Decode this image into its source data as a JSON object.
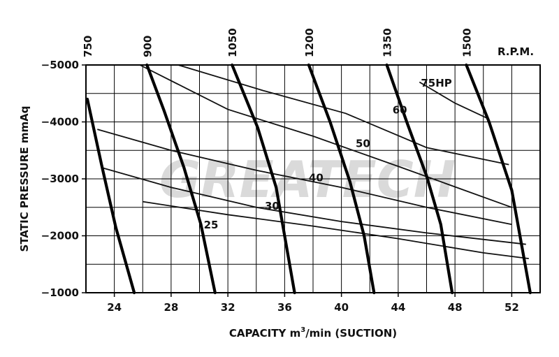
{
  "chart_data": {
    "type": "line",
    "title": "",
    "watermark": "GREATECH",
    "xlabel_prefix": "CAPACITY  m",
    "xlabel_sup": "3",
    "xlabel_suffix": "/min  (SUCTION)",
    "ylabel": "STATIC  PRESSURE  mmAq",
    "rpm_label": "R.P.M.",
    "xlim": [
      22,
      54
    ],
    "ylim": [
      -1000,
      -5000
    ],
    "grid": true,
    "x_ticks": [
      24,
      28,
      32,
      36,
      40,
      44,
      48,
      52
    ],
    "x_tick_labels": [
      "24",
      "28",
      "32",
      "36",
      "40",
      "44",
      "48",
      "52"
    ],
    "y_ticks": [
      -1000,
      -2000,
      -3000,
      -4000,
      -5000
    ],
    "y_tick_labels": [
      "−1000",
      "−2000",
      "−3000",
      "−4000",
      "−5000"
    ],
    "rpm_series": [
      {
        "name": "750",
        "points": [
          [
            22.1,
            -4400
          ],
          [
            23.1,
            -3250
          ],
          [
            24.1,
            -2150
          ],
          [
            25.4,
            -1000
          ]
        ]
      },
      {
        "name": "900",
        "points": [
          [
            26.3,
            -5000
          ],
          [
            27.5,
            -4200
          ],
          [
            28.9,
            -3200
          ],
          [
            30.1,
            -2200
          ],
          [
            31.1,
            -1000
          ]
        ]
      },
      {
        "name": "1050",
        "points": [
          [
            32.3,
            -5000
          ],
          [
            34.1,
            -3900
          ],
          [
            35.4,
            -2850
          ],
          [
            36.7,
            -1000
          ]
        ]
      },
      {
        "name": "1200",
        "points": [
          [
            37.7,
            -5000
          ],
          [
            39.2,
            -4000
          ],
          [
            40.6,
            -2950
          ],
          [
            41.6,
            -2000
          ],
          [
            42.3,
            -1000
          ]
        ]
      },
      {
        "name": "1350",
        "points": [
          [
            43.2,
            -5000
          ],
          [
            44.6,
            -4000
          ],
          [
            46.0,
            -3050
          ],
          [
            47.0,
            -2200
          ],
          [
            47.8,
            -1000
          ]
        ]
      },
      {
        "name": "1500",
        "points": [
          [
            48.8,
            -5000
          ],
          [
            50.4,
            -4000
          ],
          [
            52.0,
            -2800
          ],
          [
            53.3,
            -1000
          ]
        ]
      }
    ],
    "hp_series": [
      {
        "name": "75HP",
        "label_at": [
          45.6,
          -4620
        ],
        "points": [
          [
            45.5,
            -4700
          ],
          [
            48.0,
            -4330
          ],
          [
            50.4,
            -4050
          ]
        ]
      },
      {
        "name": "60",
        "label_at": [
          43.6,
          -4150
        ],
        "points": [
          [
            28.5,
            -5000
          ],
          [
            34.5,
            -4550
          ],
          [
            40.3,
            -4150
          ],
          [
            46.0,
            -3550
          ],
          [
            51.8,
            -3250
          ]
        ]
      },
      {
        "name": "50",
        "label_at": [
          41.0,
          -3560
        ],
        "points": [
          [
            25.8,
            -5000
          ],
          [
            32.0,
            -4220
          ],
          [
            38.0,
            -3750
          ],
          [
            44.0,
            -3220
          ],
          [
            52.0,
            -2500
          ]
        ]
      },
      {
        "name": "40",
        "label_at": [
          37.7,
          -2960
        ],
        "points": [
          [
            22.8,
            -3870
          ],
          [
            28.0,
            -3500
          ],
          [
            34.0,
            -3150
          ],
          [
            40.0,
            -2850
          ],
          [
            46.0,
            -2500
          ],
          [
            52.0,
            -2200
          ]
        ]
      },
      {
        "name": "30",
        "label_at": [
          34.6,
          -2460
        ],
        "points": [
          [
            23.2,
            -3190
          ],
          [
            28.0,
            -2850
          ],
          [
            34.0,
            -2500
          ],
          [
            40.0,
            -2250
          ],
          [
            46.0,
            -2050
          ],
          [
            53.0,
            -1850
          ]
        ]
      },
      {
        "name": "25",
        "label_at": [
          30.3,
          -2130
        ],
        "points": [
          [
            26.0,
            -2600
          ],
          [
            32.0,
            -2370
          ],
          [
            38.0,
            -2170
          ],
          [
            44.0,
            -1950
          ],
          [
            50.0,
            -1700
          ],
          [
            53.2,
            -1600
          ]
        ]
      }
    ]
  }
}
